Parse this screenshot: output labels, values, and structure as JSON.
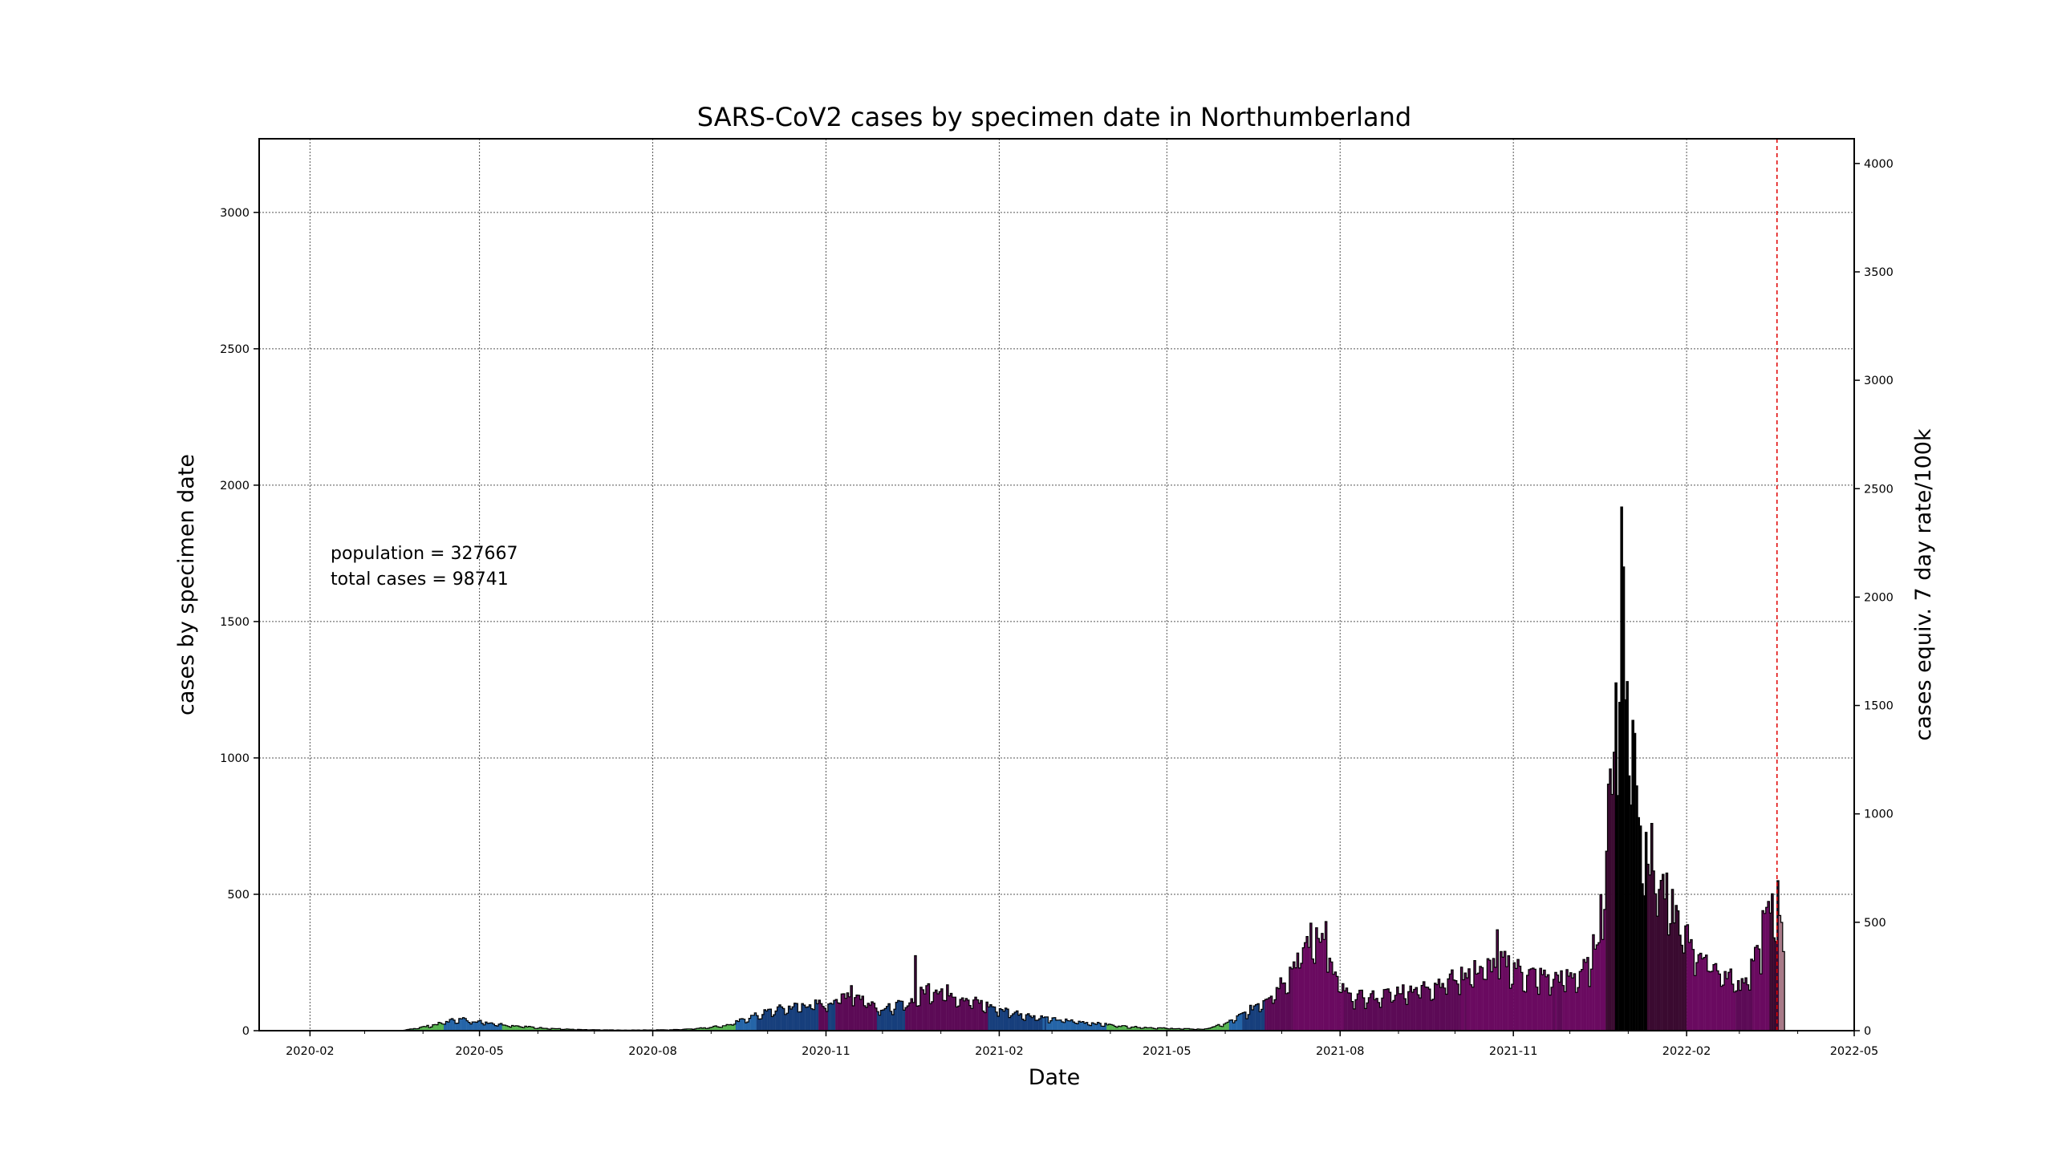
{
  "chart_data": {
    "type": "bar",
    "title": "SARS-CoV2 cases by specimen date in Northumberland",
    "xlabel": "Date",
    "ylabel": "cases by specimen date",
    "y2label": "cases equiv. 7 day rate/100k",
    "annotation_lines": [
      "population = 327667",
      "total cases = 98741"
    ],
    "population": 327667,
    "total_cases": 98741,
    "xlim": [
      "2020-01-05",
      "2022-05-01"
    ],
    "ylim": [
      0,
      3270
    ],
    "y2lim": [
      0,
      4114
    ],
    "x_ticks": [
      "2020-02",
      "2020-05",
      "2020-08",
      "2020-11",
      "2021-02",
      "2021-05",
      "2021-08",
      "2021-11",
      "2022-02",
      "2022-05"
    ],
    "y_ticks": [
      0,
      500,
      1000,
      1500,
      2000,
      2500,
      3000
    ],
    "y2_ticks": [
      0,
      500,
      1000,
      1500,
      2000,
      2500,
      3000,
      3500,
      4000
    ],
    "grid": true,
    "marker_line_date": "2022-03-21",
    "marker_line_color": "#e00000",
    "bar_outline_color": "#000000",
    "rate_color_bands": [
      {
        "min_rate": 0,
        "color": "#3d9a5a"
      },
      {
        "min_rate": 10,
        "color": "#57b450"
      },
      {
        "min_rate": 50,
        "color": "#2565a8"
      },
      {
        "min_rate": 100,
        "color": "#173f7c"
      },
      {
        "min_rate": 200,
        "color": "#5c0a56"
      },
      {
        "min_rate": 400,
        "color": "#6a0a60"
      },
      {
        "min_rate": 800,
        "color": "#3a0a30"
      },
      {
        "min_rate": 1600,
        "color": "#000000"
      }
    ],
    "incomplete_color": "#a87a88",
    "series_keypoints": [
      [
        "2020-01-05",
        0
      ],
      [
        "2020-03-20",
        0
      ],
      [
        "2020-04-05",
        18
      ],
      [
        "2020-04-18",
        40
      ],
      [
        "2020-05-01",
        32
      ],
      [
        "2020-05-15",
        20
      ],
      [
        "2020-06-01",
        10
      ],
      [
        "2020-06-20",
        4
      ],
      [
        "2020-07-15",
        2
      ],
      [
        "2020-08-10",
        3
      ],
      [
        "2020-08-25",
        8
      ],
      [
        "2020-09-10",
        20
      ],
      [
        "2020-09-20",
        45
      ],
      [
        "2020-10-05",
        75
      ],
      [
        "2020-10-20",
        90
      ],
      [
        "2020-11-01",
        95
      ],
      [
        "2020-11-12",
        130
      ],
      [
        "2020-11-22",
        110
      ],
      [
        "2020-12-01",
        75
      ],
      [
        "2020-12-15",
        100
      ],
      [
        "2020-12-25",
        150
      ],
      [
        "2021-01-03",
        140
      ],
      [
        "2021-01-15",
        110
      ],
      [
        "2021-02-01",
        75
      ],
      [
        "2021-02-15",
        55
      ],
      [
        "2021-03-01",
        40
      ],
      [
        "2021-03-20",
        28
      ],
      [
        "2021-04-10",
        14
      ],
      [
        "2021-05-01",
        8
      ],
      [
        "2021-05-20",
        5
      ],
      [
        "2021-06-01",
        25
      ],
      [
        "2021-06-12",
        65
      ],
      [
        "2021-06-25",
        130
      ],
      [
        "2021-07-05",
        210
      ],
      [
        "2021-07-12",
        290
      ],
      [
        "2021-07-20",
        360
      ],
      [
        "2021-07-27",
        210
      ],
      [
        "2021-08-05",
        120
      ],
      [
        "2021-08-20",
        120
      ],
      [
        "2021-09-01",
        140
      ],
      [
        "2021-09-15",
        155
      ],
      [
        "2021-10-01",
        190
      ],
      [
        "2021-10-15",
        220
      ],
      [
        "2021-10-28",
        240
      ],
      [
        "2021-11-08",
        200
      ],
      [
        "2021-11-20",
        185
      ],
      [
        "2021-12-01",
        190
      ],
      [
        "2021-12-10",
        220
      ],
      [
        "2021-12-16",
        350
      ],
      [
        "2021-12-20",
        650
      ],
      [
        "2021-12-24",
        1000
      ],
      [
        "2021-12-27",
        1100
      ],
      [
        "2021-12-30",
        1300
      ],
      [
        "2022-01-02",
        1150
      ],
      [
        "2022-01-05",
        820
      ],
      [
        "2022-01-10",
        650
      ],
      [
        "2022-01-20",
        480
      ],
      [
        "2022-02-01",
        320
      ],
      [
        "2022-02-15",
        230
      ],
      [
        "2022-03-01",
        160
      ],
      [
        "2022-03-10",
        260
      ],
      [
        "2022-03-16",
        400
      ],
      [
        "2022-03-21",
        470
      ],
      [
        "2022-03-24",
        260
      ],
      [
        "2022-03-25",
        0
      ]
    ],
    "series_peaks": [
      [
        "2021-12-28",
        1920
      ],
      [
        "2021-12-29",
        1700
      ],
      [
        "2021-12-25",
        1275
      ],
      [
        "2021-12-31",
        1280
      ],
      [
        "2022-01-04",
        1090
      ],
      [
        "2022-01-13",
        760
      ],
      [
        "2021-07-24",
        400
      ],
      [
        "2021-10-23",
        370
      ],
      [
        "2020-12-18",
        275
      ],
      [
        "2022-03-21",
        550
      ],
      [
        "2022-03-13",
        440
      ],
      [
        "2020-11-14",
        165
      ],
      [
        "2020-04-22",
        48
      ]
    ]
  }
}
